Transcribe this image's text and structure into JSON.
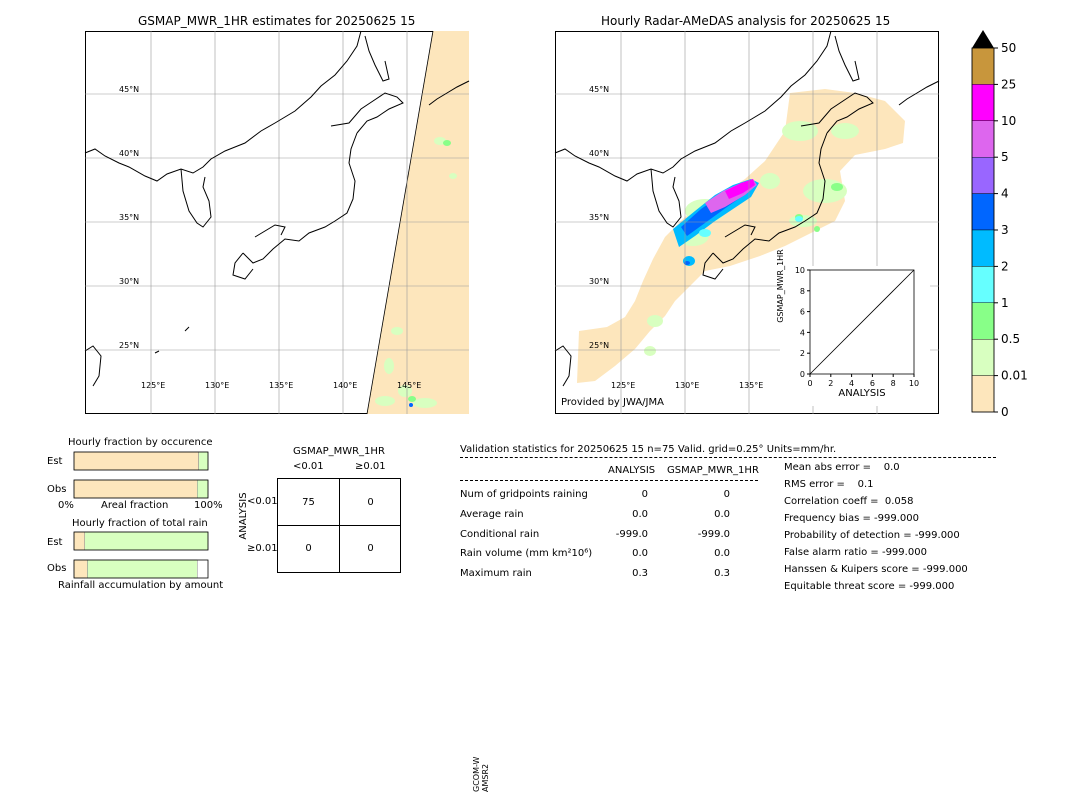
{
  "left_map": {
    "title": "GSMAP_MWR_1HR estimates for 20250625 15",
    "lat_labels": [
      "45°N",
      "40°N",
      "35°N",
      "30°N",
      "25°N"
    ],
    "lon_labels": [
      "125°E",
      "130°E",
      "135°E",
      "140°E",
      "145°E"
    ],
    "side_label_1": "GCOM-W",
    "side_label_2": "AMSR2"
  },
  "right_map": {
    "title": "Hourly Radar-AMeDAS analysis for 20250625 15",
    "lat_labels": [
      "45°N",
      "40°N",
      "35°N",
      "30°N",
      "25°N"
    ],
    "lon_labels": [
      "125°E",
      "130°E",
      "135°E"
    ],
    "credit": "Provided by JWA/JMA"
  },
  "colorbar": {
    "labels": [
      "50",
      "25",
      "10",
      "5",
      "4",
      "3",
      "2",
      "1",
      "0.5",
      "0.01",
      "0"
    ],
    "colors": [
      "#c8963c",
      "#ff00ff",
      "#dd66ee",
      "#9966ff",
      "#0066ff",
      "#00bbff",
      "#66ffff",
      "#88ff88",
      "#d8ffc0",
      "#fde6bc"
    ]
  },
  "chart_data": [
    {
      "type": "scatter",
      "title": "",
      "xlabel": "ANALYSIS",
      "ylabel": "GSMAP_MWR_1HR",
      "xlim": [
        0,
        10
      ],
      "ylim": [
        0,
        10
      ],
      "x_ticks": [
        "0",
        "2",
        "4",
        "6",
        "8",
        "10"
      ],
      "y_ticks": [
        "0",
        "2",
        "4",
        "6",
        "8",
        "10"
      ],
      "diagonal": [
        [
          0,
          0
        ],
        [
          10,
          10
        ]
      ]
    },
    {
      "type": "bar",
      "title": "Hourly fraction by occurence",
      "categories": [
        "Est",
        "Obs"
      ],
      "series": [
        {
          "values": [
            0.93,
            0.92
          ],
          "color": "#fde6bc"
        },
        {
          "values": [
            0.07,
            0.08
          ],
          "color": "#d8ffc0"
        }
      ],
      "xlabel": "Areal fraction",
      "x_left": "0%",
      "x_right": "100%"
    },
    {
      "type": "bar",
      "title": "Hourly fraction of total rain",
      "categories": [
        "Est",
        "Obs"
      ],
      "series": [
        {
          "values": [
            0.08,
            0.1
          ],
          "color": "#fde6bc"
        },
        {
          "values": [
            0.92,
            0.82
          ],
          "color": "#d8ffc0"
        }
      ],
      "xlabel": "Rainfall accumulation by amount"
    }
  ],
  "contingency": {
    "title": "GSMAP_MWR_1HR",
    "col_lt": "<0.01",
    "col_ge": "≥0.01",
    "row_label": "ANALYSIS",
    "row_lt": "<0.01",
    "row_ge": "≥0.01",
    "c11": "75",
    "c12": "0",
    "c21": "0",
    "c22": "0"
  },
  "validation": {
    "header": "Validation statistics for 20250625 15  n=75 Valid. grid=0.25° Units=mm/hr.",
    "col_analysis": "ANALYSIS",
    "col_gsmap": "GSMAP_MWR_1HR",
    "rows": [
      {
        "label": "Num of gridpoints raining",
        "a": "0",
        "g": "0"
      },
      {
        "label": "Average rain",
        "a": "0.0",
        "g": "0.0"
      },
      {
        "label": "Conditional rain",
        "a": "-999.0",
        "g": "-999.0"
      },
      {
        "label": "Rain volume (mm km²10⁶)",
        "a": "0.0",
        "g": "0.0"
      },
      {
        "label": "Maximum rain",
        "a": "0.3",
        "g": "0.3"
      }
    ],
    "scores": [
      "Mean abs error =    0.0",
      "RMS error =    0.1",
      "Correlation coeff =  0.058",
      "Frequency bias = -999.000",
      "Probability of detection = -999.000",
      "False alarm ratio = -999.000",
      "Hanssen & Kuipers score = -999.000",
      "Equitable threat score = -999.000"
    ]
  }
}
